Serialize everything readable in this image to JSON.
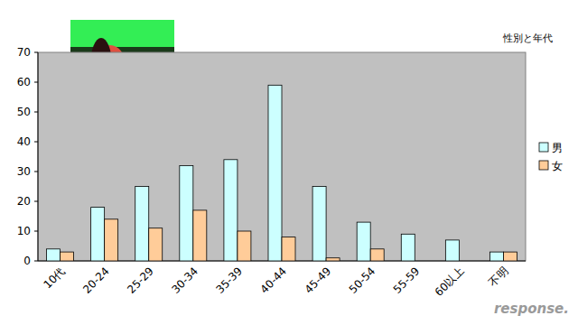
{
  "chart_data": {
    "type": "bar",
    "title": "性別と年代",
    "categories": [
      "10代",
      "20-24",
      "25-29",
      "30-34",
      "35-39",
      "40-44",
      "45-49",
      "50-54",
      "55-59",
      "60以上",
      "不明"
    ],
    "series": [
      {
        "name": "男",
        "color": "#ccffff",
        "values": [
          4,
          18,
          25,
          32,
          34,
          59,
          25,
          13,
          9,
          7,
          3
        ]
      },
      {
        "name": "女",
        "color": "#ffcc99",
        "values": [
          3,
          14,
          11,
          17,
          10,
          8,
          1,
          4,
          0,
          0,
          3
        ]
      }
    ],
    "ylim": [
      0,
      70
    ],
    "yticks": [
      0,
      10,
      20,
      30,
      40,
      50,
      60,
      70
    ],
    "grid": false,
    "legend": "right",
    "annotations": [
      "response."
    ]
  }
}
